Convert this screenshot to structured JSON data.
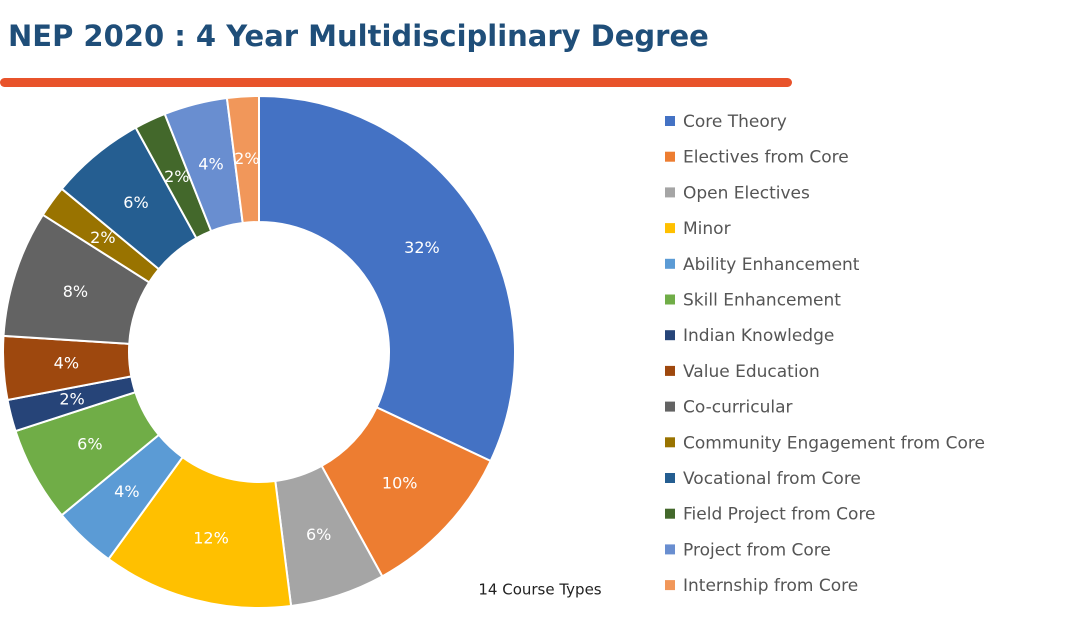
{
  "chart_data": {
    "type": "pie",
    "title": "NEP 2020 : 4 Year Multidisciplinary Degree",
    "annotation": "14 Course Types",
    "categories": [
      "Core Theory",
      "Electives from Core",
      "Open Electives",
      "Minor",
      "Ability Enhancement",
      "Skill Enhancement",
      "Indian Knowledge",
      "Value Education",
      "Co-curricular",
      "Community Engagement from Core",
      "Vocational from Core",
      "Field Project from Core",
      "Project from Core",
      "Internship from Core"
    ],
    "values": [
      32,
      10,
      6,
      12,
      4,
      6,
      2,
      4,
      8,
      2,
      6,
      2,
      4,
      2
    ],
    "value_labels": [
      "32%",
      "10%",
      "6%",
      "12%",
      "4%",
      "6%",
      "2%",
      "4%",
      "8%",
      "2%",
      "6%",
      "2%",
      "4%",
      "2%"
    ],
    "colors": [
      "#4472c4",
      "#ed7d31",
      "#a5a5a5",
      "#ffc000",
      "#5b9bd5",
      "#70ad47",
      "#264478",
      "#9e480e",
      "#636363",
      "#997300",
      "#255e91",
      "#43682b",
      "#698ed0",
      "#f1975a"
    ],
    "legend": "right"
  }
}
